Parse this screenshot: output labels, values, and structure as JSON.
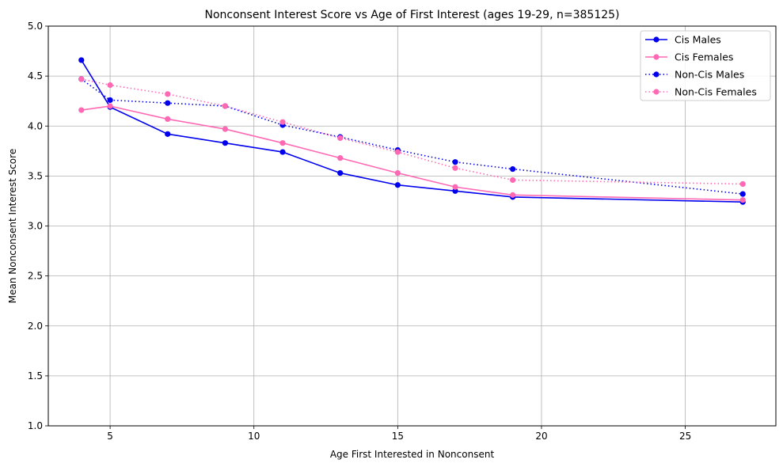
{
  "chart_data": {
    "type": "line",
    "title": "Nonconsent Interest Score vs Age of First Interest (ages 19-29, n=385125)",
    "xlabel": "Age First Interested in Nonconsent",
    "ylabel": "Mean Nonconsent Interest Score",
    "xlim": [
      2.85,
      28.15
    ],
    "ylim": [
      1.0,
      5.0
    ],
    "x_ticks": [
      5,
      10,
      15,
      20,
      25
    ],
    "y_ticks": [
      "1.0",
      "1.5",
      "2.0",
      "2.5",
      "3.0",
      "3.5",
      "4.0",
      "4.5",
      "5.0"
    ],
    "grid": true,
    "legend_position": "top-right",
    "x": [
      4,
      5,
      7,
      9,
      11,
      13,
      15,
      17,
      19,
      27
    ],
    "series": [
      {
        "name": "Cis Males",
        "color": "#0000ee",
        "linestyle": "solid",
        "values": [
          4.66,
          4.19,
          3.92,
          3.83,
          3.74,
          3.53,
          3.41,
          3.35,
          3.29,
          3.24
        ]
      },
      {
        "name": "Cis Females",
        "color": "#ff69b4",
        "linestyle": "solid",
        "values": [
          4.16,
          4.2,
          4.07,
          3.97,
          3.83,
          3.68,
          3.53,
          3.39,
          3.31,
          3.26
        ]
      },
      {
        "name": "Non-Cis Males",
        "color": "#0000ee",
        "linestyle": "dotted",
        "values": [
          4.47,
          4.26,
          4.23,
          4.2,
          4.01,
          3.89,
          3.76,
          3.64,
          3.57,
          3.32
        ]
      },
      {
        "name": "Non-Cis Females",
        "color": "#ff69b4",
        "linestyle": "dotted",
        "values": [
          4.47,
          4.41,
          4.32,
          4.2,
          4.04,
          3.88,
          3.74,
          3.58,
          3.46,
          3.42
        ]
      }
    ]
  }
}
